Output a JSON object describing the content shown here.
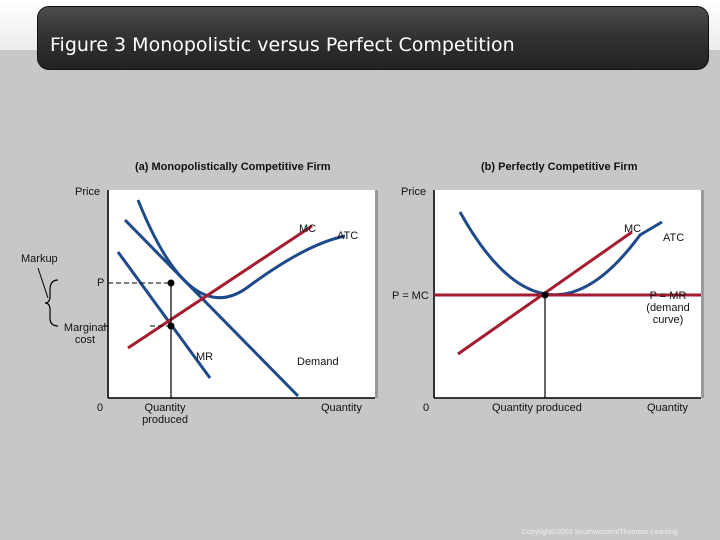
{
  "title": "Figure 3 Monopolistic versus Perfect Competition",
  "panel_a": {
    "heading": "(a) Monopolistically Competitive Firm",
    "y_label": "Price",
    "x_label": "Quantity",
    "origin": "0",
    "mc": "MC",
    "atc": "ATC",
    "mr": "MR",
    "demand": "Demand",
    "p": "P",
    "markup": "Markup",
    "marginal_cost": "Marginal cost",
    "quantity_produced": "Quantity produced"
  },
  "panel_b": {
    "heading": "(b) Perfectly Competitive Firm",
    "y_label": "Price",
    "x_label": "Quantity",
    "origin": "0",
    "mc": "MC",
    "atc": "ATC",
    "p_eq_mc": "P = MC",
    "p_eq_mr": "P = MR (demand curve)",
    "quantity_produced": "Quantity produced"
  },
  "copyright": "Copyright©2003 Southwestern/Thomson Learning",
  "colors": {
    "curve_blue": "#1f4a8a",
    "curve_red": "#a51c30",
    "axis": "#000000"
  }
}
